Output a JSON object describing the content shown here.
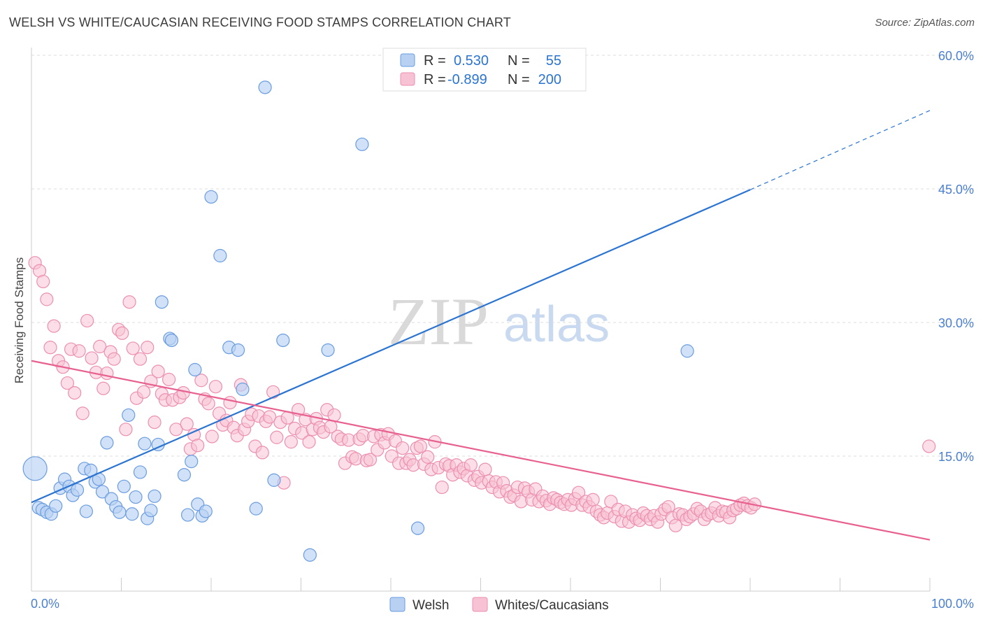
{
  "title": "WELSH VS WHITE/CAUCASIAN RECEIVING FOOD STAMPS CORRELATION CHART",
  "source": "Source: ZipAtlas.com",
  "watermark": {
    "zip": "ZIP",
    "atlas": "atlas"
  },
  "legend_top": {
    "rows": [
      {
        "r_label": "R =",
        "r_value": "0.530",
        "n_label": "N =",
        "n_value": "55"
      },
      {
        "r_label": "R =",
        "r_value": "-0.899",
        "n_label": "N =",
        "n_value": "200"
      }
    ]
  },
  "legend_bottom": {
    "items": [
      "Welsh",
      "Whites/Caucasians"
    ]
  },
  "colors": {
    "welsh_fill": "#b8d1f3",
    "welsh_stroke": "#6a9de0",
    "welsh_line": "#2b74d1",
    "white_fill": "#f7c2d3",
    "white_stroke": "#ec8fb0",
    "white_line": "#e8608f",
    "tick_text": "#4a7fd0",
    "grid": "#dddddd"
  },
  "chart_data": {
    "type": "scatter",
    "title": "WELSH VS WHITE/CAUCASIAN RECEIVING FOOD STAMPS CORRELATION CHART",
    "xlabel": "",
    "ylabel": "Receiving Food Stamps",
    "xlim": [
      0,
      100
    ],
    "ylim": [
      0,
      60
    ],
    "x_tick_labels": [
      "0.0%",
      "100.0%"
    ],
    "y_ticks": [
      15,
      30,
      45,
      60
    ],
    "y_tick_labels": [
      "15.0%",
      "30.0%",
      "45.0%",
      "60.0%"
    ],
    "grid": true,
    "legend_placement": "top-center",
    "series": [
      {
        "name": "Welsh",
        "R": 0.53,
        "N": 55,
        "trend": {
          "x": [
            0,
            80
          ],
          "y": [
            9.8,
            44.9
          ],
          "dashed_to": [
            100,
            53.8
          ]
        },
        "points": [
          [
            0.4,
            13.6
          ],
          [
            0.8,
            9.2
          ],
          [
            1.2,
            9.0
          ],
          [
            1.7,
            8.7
          ],
          [
            2.2,
            8.5
          ],
          [
            2.7,
            9.4
          ],
          [
            3.2,
            11.4
          ],
          [
            3.7,
            12.4
          ],
          [
            4.2,
            11.6
          ],
          [
            4.6,
            10.6
          ],
          [
            5.1,
            11.2
          ],
          [
            5.9,
            13.6
          ],
          [
            6.1,
            8.8
          ],
          [
            6.6,
            13.4
          ],
          [
            7.1,
            12.1
          ],
          [
            7.5,
            12.4
          ],
          [
            7.9,
            11.0
          ],
          [
            8.4,
            16.5
          ],
          [
            8.9,
            10.2
          ],
          [
            9.4,
            9.3
          ],
          [
            9.8,
            8.7
          ],
          [
            10.3,
            11.6
          ],
          [
            10.8,
            19.6
          ],
          [
            11.2,
            8.5
          ],
          [
            11.6,
            10.4
          ],
          [
            12.1,
            13.2
          ],
          [
            12.6,
            16.4
          ],
          [
            12.9,
            8.0
          ],
          [
            13.3,
            8.9
          ],
          [
            13.7,
            10.5
          ],
          [
            14.1,
            16.3
          ],
          [
            14.5,
            32.3
          ],
          [
            15.4,
            28.2
          ],
          [
            15.6,
            28.0
          ],
          [
            17.0,
            12.9
          ],
          [
            17.4,
            8.4
          ],
          [
            17.8,
            14.4
          ],
          [
            18.2,
            24.7
          ],
          [
            18.5,
            9.6
          ],
          [
            19.0,
            8.3
          ],
          [
            19.4,
            8.8
          ],
          [
            20.0,
            44.1
          ],
          [
            21.0,
            37.5
          ],
          [
            22.0,
            27.2
          ],
          [
            23.0,
            26.9
          ],
          [
            23.5,
            22.5
          ],
          [
            25.0,
            9.1
          ],
          [
            26.0,
            56.4
          ],
          [
            27.0,
            12.3
          ],
          [
            28.0,
            28.0
          ],
          [
            31.0,
            3.9
          ],
          [
            33.0,
            26.9
          ],
          [
            36.8,
            50.0
          ],
          [
            43.0,
            6.9
          ],
          [
            73.0,
            26.8
          ]
        ]
      },
      {
        "name": "Whites/Caucasians",
        "R": -0.899,
        "N": 200,
        "trend": {
          "x": [
            0,
            100
          ],
          "y": [
            25.7,
            5.6
          ]
        },
        "points": [
          [
            0.4,
            36.7
          ],
          [
            0.9,
            35.8
          ],
          [
            1.3,
            34.6
          ],
          [
            1.7,
            32.6
          ],
          [
            2.1,
            27.2
          ],
          [
            2.5,
            29.6
          ],
          [
            3.0,
            25.7
          ],
          [
            3.5,
            25.0
          ],
          [
            4.0,
            23.2
          ],
          [
            4.4,
            27.0
          ],
          [
            4.8,
            22.1
          ],
          [
            5.3,
            26.8
          ],
          [
            5.7,
            19.8
          ],
          [
            6.2,
            30.2
          ],
          [
            6.7,
            26.0
          ],
          [
            7.2,
            24.4
          ],
          [
            7.6,
            27.3
          ],
          [
            8.0,
            22.6
          ],
          [
            8.4,
            24.3
          ],
          [
            8.8,
            26.7
          ],
          [
            9.2,
            25.9
          ],
          [
            9.7,
            29.2
          ],
          [
            10.1,
            28.8
          ],
          [
            10.5,
            18.0
          ],
          [
            10.9,
            32.3
          ],
          [
            11.3,
            27.1
          ],
          [
            11.7,
            21.5
          ],
          [
            12.1,
            25.9
          ],
          [
            12.5,
            22.2
          ],
          [
            12.9,
            27.2
          ],
          [
            13.3,
            23.4
          ],
          [
            13.7,
            18.8
          ],
          [
            14.1,
            24.5
          ],
          [
            14.5,
            22.0
          ],
          [
            14.9,
            21.3
          ],
          [
            15.3,
            23.6
          ],
          [
            15.7,
            21.3
          ],
          [
            16.1,
            18.0
          ],
          [
            16.5,
            21.6
          ],
          [
            16.9,
            22.1
          ],
          [
            17.3,
            18.6
          ],
          [
            17.7,
            15.8
          ],
          [
            18.1,
            17.4
          ],
          [
            18.5,
            16.2
          ],
          [
            18.9,
            23.5
          ],
          [
            19.3,
            21.4
          ],
          [
            19.7,
            20.9
          ],
          [
            20.1,
            17.2
          ],
          [
            20.5,
            22.8
          ],
          [
            20.9,
            19.8
          ],
          [
            21.3,
            18.5
          ],
          [
            21.7,
            19.0
          ],
          [
            22.1,
            21.0
          ],
          [
            22.5,
            18.2
          ],
          [
            22.9,
            17.3
          ],
          [
            23.3,
            23.0
          ],
          [
            23.7,
            18.0
          ],
          [
            24.1,
            18.9
          ],
          [
            24.5,
            19.7
          ],
          [
            24.9,
            16.1
          ],
          [
            25.3,
            19.5
          ],
          [
            25.7,
            15.4
          ],
          [
            26.1,
            18.9
          ],
          [
            26.5,
            19.4
          ],
          [
            26.9,
            22.2
          ],
          [
            27.3,
            17.1
          ],
          [
            27.7,
            18.8
          ],
          [
            28.1,
            12.0
          ],
          [
            28.5,
            19.3
          ],
          [
            28.9,
            16.6
          ],
          [
            29.3,
            18.1
          ],
          [
            29.7,
            20.2
          ],
          [
            30.1,
            17.6
          ],
          [
            30.5,
            19.1
          ],
          [
            30.9,
            16.6
          ],
          [
            31.3,
            18.0
          ],
          [
            31.7,
            19.2
          ],
          [
            32.1,
            18.2
          ],
          [
            32.5,
            17.7
          ],
          [
            32.9,
            20.2
          ],
          [
            33.3,
            18.3
          ],
          [
            33.7,
            19.6
          ],
          [
            34.1,
            17.2
          ],
          [
            34.5,
            16.9
          ],
          [
            34.9,
            14.2
          ],
          [
            35.3,
            16.8
          ],
          [
            35.7,
            14.9
          ],
          [
            36.1,
            14.7
          ],
          [
            36.5,
            16.9
          ],
          [
            36.9,
            17.3
          ],
          [
            37.3,
            14.5
          ],
          [
            37.7,
            14.6
          ],
          [
            38.1,
            17.2
          ],
          [
            38.5,
            15.7
          ],
          [
            38.9,
            17.4
          ],
          [
            39.3,
            16.5
          ],
          [
            39.7,
            17.5
          ],
          [
            40.1,
            15.0
          ],
          [
            40.5,
            16.7
          ],
          [
            40.9,
            14.2
          ],
          [
            41.3,
            15.9
          ],
          [
            41.7,
            14.2
          ],
          [
            42.1,
            14.6
          ],
          [
            42.5,
            14.0
          ],
          [
            42.9,
            15.9
          ],
          [
            43.3,
            16.1
          ],
          [
            43.7,
            14.1
          ],
          [
            44.1,
            14.9
          ],
          [
            44.5,
            13.5
          ],
          [
            44.9,
            16.6
          ],
          [
            45.3,
            13.7
          ],
          [
            45.7,
            11.5
          ],
          [
            46.1,
            14.1
          ],
          [
            46.5,
            13.9
          ],
          [
            46.9,
            12.9
          ],
          [
            47.3,
            14.0
          ],
          [
            47.7,
            13.2
          ],
          [
            48.1,
            13.6
          ],
          [
            48.5,
            12.8
          ],
          [
            48.9,
            14.0
          ],
          [
            49.3,
            12.3
          ],
          [
            49.7,
            12.7
          ],
          [
            50.1,
            12.0
          ],
          [
            50.5,
            13.5
          ],
          [
            50.9,
            12.2
          ],
          [
            51.3,
            11.5
          ],
          [
            51.7,
            12.1
          ],
          [
            52.1,
            11.0
          ],
          [
            52.5,
            12.0
          ],
          [
            52.9,
            11.1
          ],
          [
            53.3,
            10.4
          ],
          [
            53.7,
            10.6
          ],
          [
            54.1,
            11.5
          ],
          [
            54.5,
            9.9
          ],
          [
            54.9,
            11.4
          ],
          [
            55.3,
            11.0
          ],
          [
            55.7,
            10.1
          ],
          [
            56.1,
            11.3
          ],
          [
            56.5,
            9.9
          ],
          [
            56.9,
            10.5
          ],
          [
            57.3,
            10.0
          ],
          [
            57.7,
            9.6
          ],
          [
            58.1,
            10.3
          ],
          [
            58.5,
            10.1
          ],
          [
            58.9,
            9.8
          ],
          [
            59.3,
            9.6
          ],
          [
            59.7,
            10.1
          ],
          [
            60.1,
            9.5
          ],
          [
            60.5,
            10.2
          ],
          [
            60.9,
            10.9
          ],
          [
            61.3,
            9.5
          ],
          [
            61.7,
            9.9
          ],
          [
            62.1,
            9.3
          ],
          [
            62.5,
            10.1
          ],
          [
            62.9,
            8.8
          ],
          [
            63.3,
            8.4
          ],
          [
            63.7,
            8.1
          ],
          [
            64.1,
            8.6
          ],
          [
            64.5,
            9.9
          ],
          [
            64.9,
            8.2
          ],
          [
            65.3,
            9.0
          ],
          [
            65.7,
            7.7
          ],
          [
            66.1,
            8.8
          ],
          [
            66.5,
            7.6
          ],
          [
            66.9,
            8.4
          ],
          [
            67.3,
            8.0
          ],
          [
            67.7,
            7.8
          ],
          [
            68.1,
            8.6
          ],
          [
            68.5,
            8.3
          ],
          [
            68.9,
            7.9
          ],
          [
            69.3,
            8.3
          ],
          [
            69.7,
            7.6
          ],
          [
            70.1,
            8.5
          ],
          [
            70.5,
            9.0
          ],
          [
            70.9,
            9.3
          ],
          [
            71.3,
            8.1
          ],
          [
            71.7,
            7.2
          ],
          [
            72.1,
            8.5
          ],
          [
            72.5,
            8.4
          ],
          [
            72.9,
            7.9
          ],
          [
            73.3,
            8.2
          ],
          [
            73.7,
            8.5
          ],
          [
            74.1,
            9.1
          ],
          [
            74.5,
            8.8
          ],
          [
            74.9,
            7.9
          ],
          [
            75.3,
            8.4
          ],
          [
            75.7,
            8.6
          ],
          [
            76.1,
            9.2
          ],
          [
            76.5,
            8.3
          ],
          [
            76.9,
            8.8
          ],
          [
            77.3,
            8.7
          ],
          [
            77.7,
            8.1
          ],
          [
            78.1,
            8.9
          ],
          [
            78.5,
            9.1
          ],
          [
            78.9,
            9.5
          ],
          [
            79.3,
            9.7
          ],
          [
            79.7,
            9.4
          ],
          [
            80.1,
            9.2
          ],
          [
            80.5,
            9.6
          ],
          [
            99.9,
            16.1
          ]
        ]
      }
    ]
  }
}
